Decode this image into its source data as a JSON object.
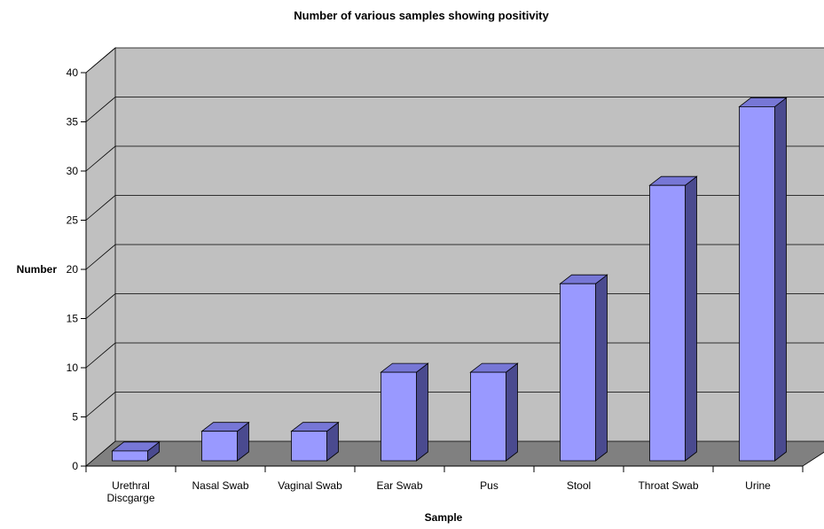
{
  "chart_data": {
    "type": "bar",
    "title": "Number of various samples showing positivity",
    "xlabel": "Sample",
    "ylabel": "Number",
    "ylim": [
      0,
      40
    ],
    "yticks": [
      0,
      5,
      10,
      15,
      20,
      25,
      30,
      35,
      40
    ],
    "categories": [
      [
        "Urethral",
        "Discgarge"
      ],
      [
        "Nasal Swab"
      ],
      [
        "Vaginal Swab"
      ],
      [
        "Ear Swab"
      ],
      [
        "Pus"
      ],
      [
        "Stool"
      ],
      [
        "Throat Swab"
      ],
      [
        "Urine"
      ]
    ],
    "values": [
      1,
      3,
      3,
      9,
      9,
      18,
      28,
      36
    ],
    "grid": true,
    "style": "3d",
    "colors": {
      "bar_front": "#9999ff",
      "bar_top": "#7777d6",
      "bar_side": "#4a4a8f",
      "wall": "#c0c0c0",
      "floor": "#808080"
    }
  }
}
